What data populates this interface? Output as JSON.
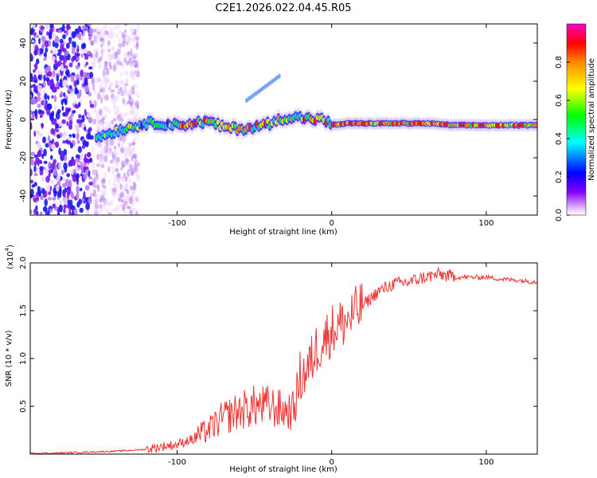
{
  "title": "C2E1.2026.022.04.45.R05",
  "chart_data": [
    {
      "type": "heatmap",
      "name": "spectrogram",
      "xlabel": "Height of straight line (km)",
      "ylabel": "Frequency (Hz)",
      "xlim": [
        -195,
        133
      ],
      "ylim": [
        -50,
        50
      ],
      "xticks": [
        -100,
        0,
        100
      ],
      "xtick_labels": [
        "-100",
        "0",
        "100"
      ],
      "yticks": [
        -40,
        -20,
        0,
        20,
        40
      ],
      "ytick_labels": [
        "-40",
        "-20",
        "0",
        "20",
        "40"
      ],
      "ridge": {
        "x": [
          -150,
          -140,
          -130,
          -120,
          -110,
          -100,
          -90,
          -80,
          -70,
          -60,
          -50,
          -40,
          -30,
          -20,
          -10,
          -5,
          0,
          10,
          20,
          40,
          60,
          80,
          100,
          120,
          133
        ],
        "freq": [
          -9,
          -6,
          -4,
          -2,
          -2,
          -3,
          -2,
          -1,
          -4,
          -5,
          -4,
          -2,
          1,
          1,
          0,
          0,
          -3,
          -2,
          -2,
          -2,
          -2,
          -3,
          -3,
          -3,
          -3
        ]
      },
      "colorbar": {
        "label": "Normalized spectral amplitude",
        "range": [
          0,
          1
        ],
        "ticks": [
          0.0,
          0.2,
          0.4,
          0.6,
          0.8
        ],
        "tick_labels": [
          "0.0",
          "0.2",
          "0.4",
          "0.6",
          "0.8"
        ]
      }
    },
    {
      "type": "line",
      "name": "snr",
      "xlabel": "Height of straight line (km)",
      "ylabel": "SNR (10 * v/v)",
      "scale_label": "(x10",
      "scale_exponent": "4",
      "scale_close": ")",
      "xlim": [
        -195,
        133
      ],
      "ylim": [
        0,
        2.0
      ],
      "xticks": [
        -100,
        0,
        100
      ],
      "xtick_labels": [
        "-100",
        "0",
        "100"
      ],
      "yticks": [
        0.5,
        1.0,
        1.5,
        2.0
      ],
      "ytick_labels": [
        "0.5",
        "1.0",
        "1.5",
        "2.0"
      ],
      "color": "#ee3333",
      "series": [
        {
          "name": "SNR",
          "x": [
            -195,
            -180,
            -160,
            -140,
            -120,
            -110,
            -100,
            -90,
            -80,
            -70,
            -60,
            -50,
            -40,
            -30,
            -25,
            -20,
            -15,
            -10,
            -5,
            0,
            10,
            20,
            30,
            40,
            50,
            60,
            70,
            80,
            90,
            100,
            110,
            120,
            133
          ],
          "y": [
            0.01,
            0.01,
            0.02,
            0.03,
            0.05,
            0.08,
            0.1,
            0.16,
            0.25,
            0.38,
            0.45,
            0.5,
            0.5,
            0.45,
            0.45,
            0.8,
            0.9,
            1.1,
            1.2,
            1.3,
            1.4,
            1.55,
            1.7,
            1.78,
            1.8,
            1.85,
            1.88,
            1.85,
            1.85,
            1.85,
            1.83,
            1.82,
            1.8
          ]
        }
      ]
    }
  ]
}
